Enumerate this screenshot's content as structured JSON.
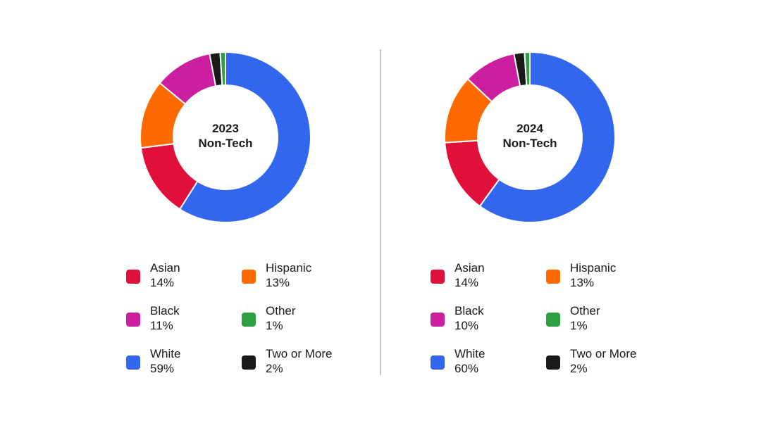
{
  "chart_data": [
    {
      "type": "pie",
      "subtype": "donut",
      "title": "2023 Non-Tech",
      "title_lines": [
        "2023",
        "Non-Tech"
      ],
      "slices": [
        {
          "label": "White",
          "value": 59,
          "display": "59%",
          "color": "#3366EE"
        },
        {
          "label": "Asian",
          "value": 14,
          "display": "14%",
          "color": "#E0103A"
        },
        {
          "label": "Hispanic",
          "value": 13,
          "display": "13%",
          "color": "#FF6A00"
        },
        {
          "label": "Black",
          "value": 11,
          "display": "11%",
          "color": "#CC1FA0"
        },
        {
          "label": "Two or More",
          "value": 2,
          "display": "2%",
          "color": "#1A1A1A"
        },
        {
          "label": "Other",
          "value": 1,
          "display": "1%",
          "color": "#2EA043"
        }
      ],
      "legend_order": [
        "Asian",
        "Hispanic",
        "Black",
        "Other",
        "White",
        "Two or More"
      ],
      "legend_placement": "bottom"
    },
    {
      "type": "pie",
      "subtype": "donut",
      "title": "2024 Non-Tech",
      "title_lines": [
        "2024",
        "Non-Tech"
      ],
      "slices": [
        {
          "label": "White",
          "value": 60,
          "display": "60%",
          "color": "#3366EE"
        },
        {
          "label": "Asian",
          "value": 14,
          "display": "14%",
          "color": "#E0103A"
        },
        {
          "label": "Hispanic",
          "value": 13,
          "display": "13%",
          "color": "#FF6A00"
        },
        {
          "label": "Black",
          "value": 10,
          "display": "10%",
          "color": "#CC1FA0"
        },
        {
          "label": "Two or More",
          "value": 2,
          "display": "2%",
          "color": "#1A1A1A"
        },
        {
          "label": "Other",
          "value": 1,
          "display": "1%",
          "color": "#2EA043"
        }
      ],
      "legend_order": [
        "Asian",
        "Hispanic",
        "Black",
        "Other",
        "White",
        "Two or More"
      ],
      "legend_placement": "bottom"
    }
  ]
}
